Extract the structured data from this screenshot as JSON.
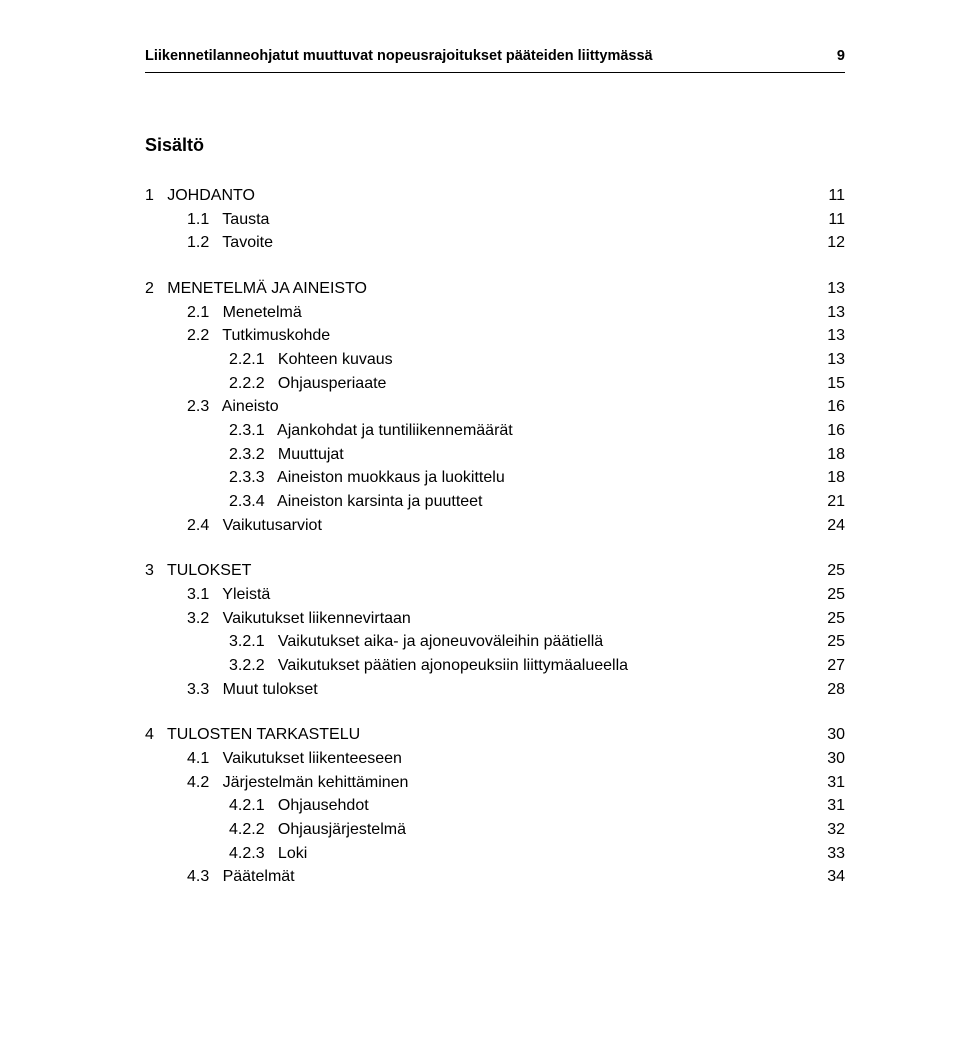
{
  "header": {
    "title": "Liikennetilanneohjatut muuttuvat nopeusrajoitukset pääteiden liittymässä",
    "page_number": "9"
  },
  "sisalto_heading": "Sisältö",
  "toc": [
    {
      "rows": [
        {
          "level": 0,
          "num": "1",
          "title": "JOHDANTO",
          "page": "11"
        },
        {
          "level": 1,
          "num": "1.1",
          "title": "Tausta",
          "page": "11"
        },
        {
          "level": 1,
          "num": "1.2",
          "title": "Tavoite",
          "page": "12"
        }
      ]
    },
    {
      "rows": [
        {
          "level": 0,
          "num": "2",
          "title": "MENETELMÄ JA AINEISTO",
          "page": "13"
        },
        {
          "level": 1,
          "num": "2.1",
          "title": "Menetelmä",
          "page": "13"
        },
        {
          "level": 1,
          "num": "2.2",
          "title": "Tutkimuskohde",
          "page": "13"
        },
        {
          "level": 2,
          "num": "2.2.1",
          "title": "Kohteen kuvaus",
          "page": "13"
        },
        {
          "level": 2,
          "num": "2.2.2",
          "title": "Ohjausperiaate",
          "page": "15"
        },
        {
          "level": 1,
          "num": "2.3",
          "title": "Aineisto",
          "page": "16"
        },
        {
          "level": 2,
          "num": "2.3.1",
          "title": "Ajankohdat ja tuntiliikennemäärät",
          "page": "16"
        },
        {
          "level": 2,
          "num": "2.3.2",
          "title": "Muuttujat",
          "page": "18"
        },
        {
          "level": 2,
          "num": "2.3.3",
          "title": "Aineiston muokkaus ja luokittelu",
          "page": "18"
        },
        {
          "level": 2,
          "num": "2.3.4",
          "title": "Aineiston karsinta ja puutteet",
          "page": "21"
        },
        {
          "level": 1,
          "num": "2.4",
          "title": "Vaikutusarviot",
          "page": "24"
        }
      ]
    },
    {
      "rows": [
        {
          "level": 0,
          "num": "3",
          "title": "TULOKSET",
          "page": "25"
        },
        {
          "level": 1,
          "num": "3.1",
          "title": "Yleistä",
          "page": "25"
        },
        {
          "level": 1,
          "num": "3.2",
          "title": "Vaikutukset liikennevirtaan",
          "page": "25"
        },
        {
          "level": 2,
          "num": "3.2.1",
          "title": "Vaikutukset aika- ja ajoneuvoväleihin päätiellä",
          "page": "25"
        },
        {
          "level": 2,
          "num": "3.2.2",
          "title": "Vaikutukset päätien ajonopeuksiin liittymäalueella",
          "page": "27"
        },
        {
          "level": 1,
          "num": "3.3",
          "title": "Muut tulokset",
          "page": "28"
        }
      ]
    },
    {
      "rows": [
        {
          "level": 0,
          "num": "4",
          "title": "TULOSTEN TARKASTELU",
          "page": "30"
        },
        {
          "level": 1,
          "num": "4.1",
          "title": "Vaikutukset liikenteeseen",
          "page": "30"
        },
        {
          "level": 1,
          "num": "4.2",
          "title": "Järjestelmän kehittäminen",
          "page": "31"
        },
        {
          "level": 2,
          "num": "4.2.1",
          "title": "Ohjausehdot",
          "page": "31"
        },
        {
          "level": 2,
          "num": "4.2.2",
          "title": "Ohjausjärjestelmä",
          "page": "32"
        },
        {
          "level": 2,
          "num": "4.2.3",
          "title": "Loki",
          "page": "33"
        },
        {
          "level": 1,
          "num": "4.3",
          "title": "Päätelmät",
          "page": "34"
        }
      ]
    }
  ],
  "gaps": {
    "l0": "   ",
    "l1": "   ",
    "l2": "   "
  }
}
